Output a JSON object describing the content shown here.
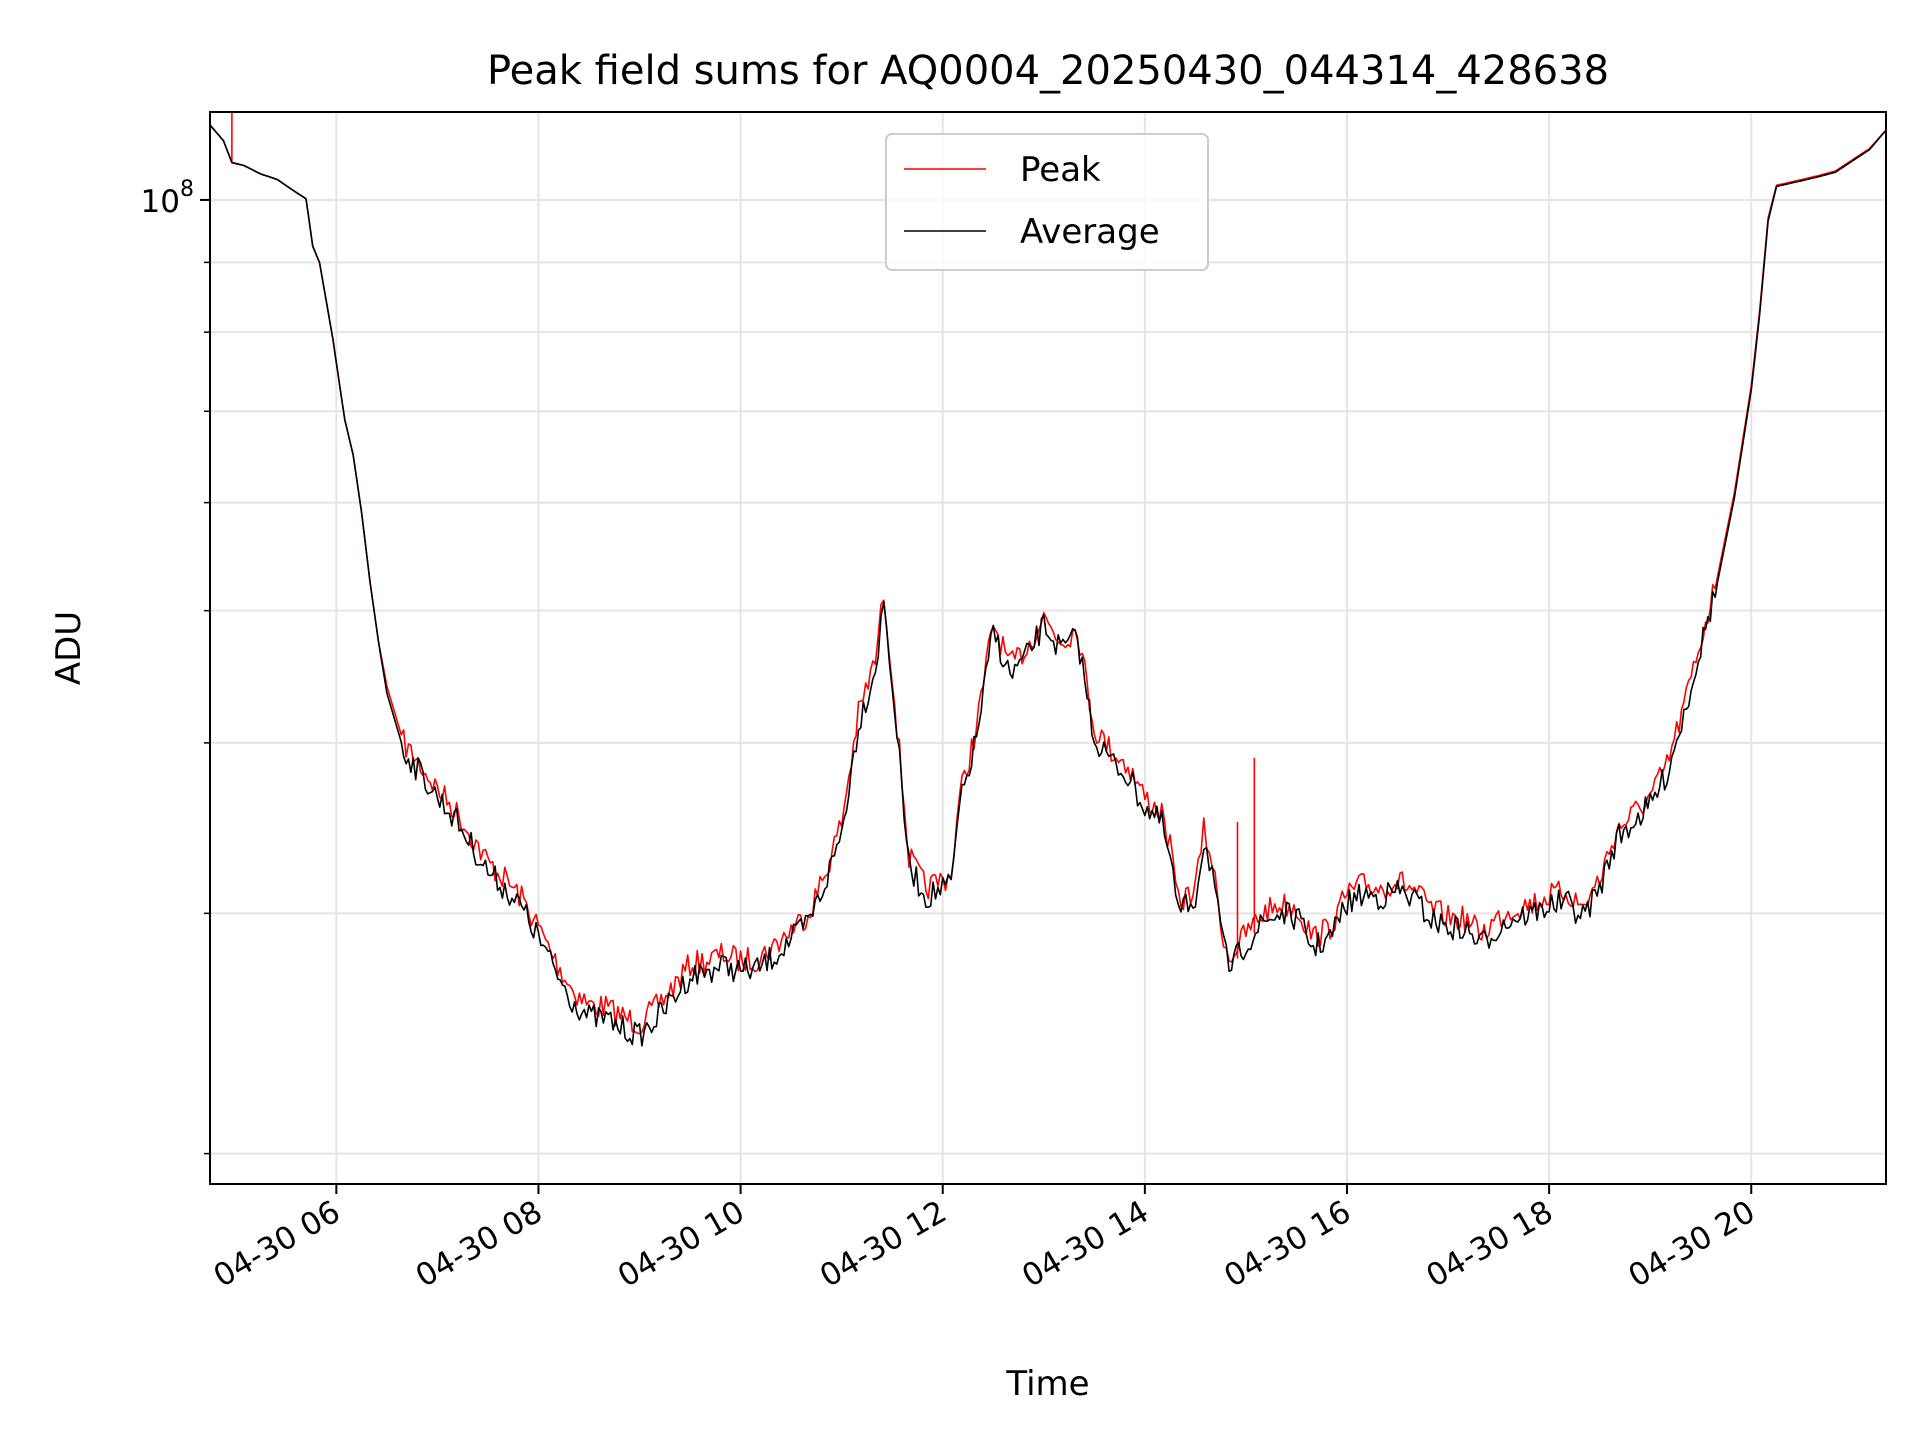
{
  "chart_data": {
    "type": "line",
    "title": "Peak field sums for AQ0004_20250430_044314_428638",
    "xlabel": "Time",
    "ylabel": "ADU",
    "x_type": "datetime",
    "x_tick_labels": [
      "04-30 06",
      "04-30 08",
      "04-30 10",
      "04-30 12",
      "04-30 14",
      "04-30 16",
      "04-30 18",
      "04-30 20"
    ],
    "x_tick_values": [
      "2025-04-30 06:00",
      "2025-04-30 08:00",
      "2025-04-30 10:00",
      "2025-04-30 12:00",
      "2025-04-30 14:00",
      "2025-04-30 16:00",
      "2025-04-30 18:00",
      "2025-04-30 20:00"
    ],
    "xlim": [
      "2025-04-30 04:45",
      "2025-04-30 21:20"
    ],
    "y_scale": "log",
    "ylim": [
      19000000,
      116000000
    ],
    "y_tick_labels": [
      {
        "base": "10",
        "exp": "8"
      }
    ],
    "y_tick_values": [
      100000000
    ],
    "y_minor_ticks": [
      20000000,
      30000000,
      40000000,
      50000000,
      60000000,
      70000000,
      80000000,
      90000000
    ],
    "grid": true,
    "legend": "upper center",
    "series": [
      {
        "name": "Peak",
        "color": "#ff0000",
        "points": [
          [
            "2025-04-30 04:45",
            113500000
          ],
          [
            "2025-04-30 04:53",
            110500000
          ],
          [
            "2025-04-30 04:58",
            106500000
          ],
          [
            "2025-04-30 05:05",
            106000000
          ],
          [
            "2025-04-30 05:15",
            104500000
          ],
          [
            "2025-04-30 05:25",
            103500000
          ],
          [
            "2025-04-30 05:35",
            101500000
          ],
          [
            "2025-04-30 05:42",
            100200000
          ],
          [
            "2025-04-30 05:46",
            92500000
          ],
          [
            "2025-04-30 05:50",
            90000000
          ],
          [
            "2025-04-30 05:58",
            79000000
          ],
          [
            "2025-04-30 06:05",
            69000000
          ],
          [
            "2025-04-30 06:10",
            65000000
          ],
          [
            "2025-04-30 06:15",
            59000000
          ],
          [
            "2025-04-30 06:20",
            52500000
          ],
          [
            "2025-04-30 06:25",
            47500000
          ],
          [
            "2025-04-30 06:30",
            44000000
          ],
          [
            "2025-04-30 06:40",
            40000000
          ],
          [
            "2025-04-30 06:50",
            38500000
          ],
          [
            "2025-04-30 07:00",
            37000000
          ],
          [
            "2025-04-30 07:10",
            35800000
          ],
          [
            "2025-04-30 07:20",
            34200000
          ],
          [
            "2025-04-30 07:30",
            32700000
          ],
          [
            "2025-04-30 07:40",
            31800000
          ],
          [
            "2025-04-30 07:50",
            30800000
          ],
          [
            "2025-04-30 08:00",
            29300000
          ],
          [
            "2025-04-30 08:10",
            27700000
          ],
          [
            "2025-04-30 08:20",
            26400000
          ],
          [
            "2025-04-30 08:30",
            25700000
          ],
          [
            "2025-04-30 08:40",
            25600000
          ],
          [
            "2025-04-30 08:50",
            25200000
          ],
          [
            "2025-04-30 09:00",
            24900000
          ],
          [
            "2025-04-30 09:10",
            25600000
          ],
          [
            "2025-04-30 09:20",
            26500000
          ],
          [
            "2025-04-30 09:30",
            27500000
          ],
          [
            "2025-04-30 09:40",
            27700000
          ],
          [
            "2025-04-30 09:50",
            28000000
          ],
          [
            "2025-04-30 10:00",
            27700000
          ],
          [
            "2025-04-30 10:10",
            27800000
          ],
          [
            "2025-04-30 10:20",
            28400000
          ],
          [
            "2025-04-30 10:30",
            29200000
          ],
          [
            "2025-04-30 10:40",
            30000000
          ],
          [
            "2025-04-30 10:50",
            32000000
          ],
          [
            "2025-04-30 11:00",
            35000000
          ],
          [
            "2025-04-30 11:10",
            42000000
          ],
          [
            "2025-04-30 11:20",
            46000000
          ],
          [
            "2025-04-30 11:25",
            51500000
          ],
          [
            "2025-04-30 11:30",
            45000000
          ],
          [
            "2025-04-30 11:40",
            33000000
          ],
          [
            "2025-04-30 11:50",
            31300000
          ],
          [
            "2025-04-30 12:00",
            31800000
          ],
          [
            "2025-04-30 12:05",
            32000000
          ],
          [
            "2025-04-30 12:10",
            36500000
          ],
          [
            "2025-04-30 12:20",
            41000000
          ],
          [
            "2025-04-30 12:30",
            49000000
          ],
          [
            "2025-04-30 12:40",
            45500000
          ],
          [
            "2025-04-30 12:50",
            47000000
          ],
          [
            "2025-04-30 13:00",
            49500000
          ],
          [
            "2025-04-30 13:10",
            47500000
          ],
          [
            "2025-04-30 13:20",
            48500000
          ],
          [
            "2025-04-30 13:30",
            41000000
          ],
          [
            "2025-04-30 13:40",
            39500000
          ],
          [
            "2025-04-30 13:50",
            38500000
          ],
          [
            "2025-04-30 14:00",
            36500000
          ],
          [
            "2025-04-30 14:10",
            35500000
          ],
          [
            "2025-04-30 14:15",
            33500000
          ],
          [
            "2025-04-30 14:20",
            30500000
          ],
          [
            "2025-04-30 14:30",
            31300000
          ],
          [
            "2025-04-30 14:35",
            34500000
          ],
          [
            "2025-04-30 14:40",
            32800000
          ],
          [
            "2025-04-30 14:45",
            29500000
          ],
          [
            "2025-04-30 14:50",
            27800000
          ],
          [
            "2025-04-30 15:00",
            29000000
          ],
          [
            "2025-04-30 15:10",
            30000000
          ],
          [
            "2025-04-30 15:20",
            30500000
          ],
          [
            "2025-04-30 15:30",
            30300000
          ],
          [
            "2025-04-30 15:40",
            28800000
          ],
          [
            "2025-04-30 15:50",
            29300000
          ],
          [
            "2025-04-30 16:00",
            31000000
          ],
          [
            "2025-04-30 16:10",
            31500000
          ],
          [
            "2025-04-30 16:20",
            31300000
          ],
          [
            "2025-04-30 16:30",
            31700000
          ],
          [
            "2025-04-30 16:40",
            31200000
          ],
          [
            "2025-04-30 16:50",
            30200000
          ],
          [
            "2025-04-30 17:00",
            29800000
          ],
          [
            "2025-04-30 17:10",
            29700000
          ],
          [
            "2025-04-30 17:20",
            29000000
          ],
          [
            "2025-04-30 17:30",
            29800000
          ],
          [
            "2025-04-30 17:40",
            30300000
          ],
          [
            "2025-04-30 17:50",
            30500000
          ],
          [
            "2025-04-30 18:00",
            30900000
          ],
          [
            "2025-04-30 18:10",
            31100000
          ],
          [
            "2025-04-30 18:20",
            30300000
          ],
          [
            "2025-04-30 18:30",
            31800000
          ],
          [
            "2025-04-30 18:40",
            34500000
          ],
          [
            "2025-04-30 18:50",
            35500000
          ],
          [
            "2025-04-30 19:00",
            36500000
          ],
          [
            "2025-04-30 19:10",
            38500000
          ],
          [
            "2025-04-30 19:20",
            42500000
          ],
          [
            "2025-04-30 19:30",
            47500000
          ],
          [
            "2025-04-30 19:40",
            53000000
          ],
          [
            "2025-04-30 19:50",
            61000000
          ],
          [
            "2025-04-30 20:00",
            73000000
          ],
          [
            "2025-04-30 20:05",
            83000000
          ],
          [
            "2025-04-30 20:10",
            97000000
          ],
          [
            "2025-04-30 20:15",
            102500000
          ],
          [
            "2025-04-30 20:30",
            103500000
          ],
          [
            "2025-04-30 20:40",
            104200000
          ],
          [
            "2025-04-30 20:50",
            105000000
          ],
          [
            "2025-04-30 21:00",
            107000000
          ],
          [
            "2025-04-30 21:10",
            109000000
          ],
          [
            "2025-04-30 21:20",
            112500000
          ]
        ],
        "spikes": [
          [
            "2025-04-30 04:58",
            116000000
          ],
          [
            "2025-04-30 14:55",
            35000000
          ],
          [
            "2025-04-30 15:05",
            39000000
          ]
        ]
      },
      {
        "name": "Average",
        "color": "#000000",
        "points": [
          [
            "2025-04-30 04:45",
            113500000
          ],
          [
            "2025-04-30 04:53",
            110500000
          ],
          [
            "2025-04-30 04:58",
            106500000
          ],
          [
            "2025-04-30 05:05",
            106000000
          ],
          [
            "2025-04-30 05:15",
            104500000
          ],
          [
            "2025-04-30 05:25",
            103500000
          ],
          [
            "2025-04-30 05:35",
            101500000
          ],
          [
            "2025-04-30 05:42",
            100200000
          ],
          [
            "2025-04-30 05:46",
            92500000
          ],
          [
            "2025-04-30 05:50",
            90000000
          ],
          [
            "2025-04-30 05:58",
            79000000
          ],
          [
            "2025-04-30 06:05",
            69000000
          ],
          [
            "2025-04-30 06:10",
            65000000
          ],
          [
            "2025-04-30 06:15",
            59000000
          ],
          [
            "2025-04-30 06:20",
            52500000
          ],
          [
            "2025-04-30 06:25",
            47500000
          ],
          [
            "2025-04-30 06:30",
            43500000
          ],
          [
            "2025-04-30 06:40",
            39500000
          ],
          [
            "2025-04-30 06:50",
            38000000
          ],
          [
            "2025-04-30 07:00",
            36500000
          ],
          [
            "2025-04-30 07:10",
            35300000
          ],
          [
            "2025-04-30 07:20",
            33700000
          ],
          [
            "2025-04-30 07:30",
            32200000
          ],
          [
            "2025-04-30 07:40",
            31300000
          ],
          [
            "2025-04-30 07:50",
            30300000
          ],
          [
            "2025-04-30 08:00",
            28800000
          ],
          [
            "2025-04-30 08:10",
            27200000
          ],
          [
            "2025-04-30 08:20",
            25900000
          ],
          [
            "2025-04-30 08:30",
            25200000
          ],
          [
            "2025-04-30 08:40",
            25100000
          ],
          [
            "2025-04-30 08:50",
            24700000
          ],
          [
            "2025-04-30 09:00",
            24400000
          ],
          [
            "2025-04-30 09:10",
            25100000
          ],
          [
            "2025-04-30 09:20",
            26000000
          ],
          [
            "2025-04-30 09:30",
            27000000
          ],
          [
            "2025-04-30 09:40",
            27200000
          ],
          [
            "2025-04-30 09:50",
            27500000
          ],
          [
            "2025-04-30 10:00",
            27200000
          ],
          [
            "2025-04-30 10:10",
            27300000
          ],
          [
            "2025-04-30 10:20",
            27900000
          ],
          [
            "2025-04-30 10:30",
            28700000
          ],
          [
            "2025-04-30 10:40",
            29500000
          ],
          [
            "2025-04-30 10:50",
            31500000
          ],
          [
            "2025-04-30 11:00",
            34400000
          ],
          [
            "2025-04-30 11:10",
            41300000
          ],
          [
            "2025-04-30 11:20",
            45300000
          ],
          [
            "2025-04-30 11:25",
            50700000
          ],
          [
            "2025-04-30 11:30",
            44300000
          ],
          [
            "2025-04-30 11:40",
            32500000
          ],
          [
            "2025-04-30 11:50",
            30800000
          ],
          [
            "2025-04-30 12:00",
            31300000
          ],
          [
            "2025-04-30 12:05",
            31500000
          ],
          [
            "2025-04-30 12:10",
            35900000
          ],
          [
            "2025-04-30 12:20",
            40300000
          ],
          [
            "2025-04-30 12:30",
            48300000
          ],
          [
            "2025-04-30 12:40",
            44800000
          ],
          [
            "2025-04-30 12:50",
            46300000
          ],
          [
            "2025-04-30 13:00",
            48800000
          ],
          [
            "2025-04-30 13:10",
            46800000
          ],
          [
            "2025-04-30 13:20",
            47800000
          ],
          [
            "2025-04-30 13:30",
            40300000
          ],
          [
            "2025-04-30 13:40",
            38800000
          ],
          [
            "2025-04-30 13:50",
            37800000
          ],
          [
            "2025-04-30 14:00",
            35900000
          ],
          [
            "2025-04-30 14:10",
            34900000
          ],
          [
            "2025-04-30 14:15",
            32900000
          ],
          [
            "2025-04-30 14:20",
            30000000
          ],
          [
            "2025-04-30 14:30",
            30800000
          ],
          [
            "2025-04-30 14:35",
            33900000
          ],
          [
            "2025-04-30 14:40",
            32300000
          ],
          [
            "2025-04-30 14:45",
            29000000
          ],
          [
            "2025-04-30 14:50",
            27300000
          ],
          [
            "2025-04-30 15:00",
            28500000
          ],
          [
            "2025-04-30 15:10",
            29500000
          ],
          [
            "2025-04-30 15:20",
            30000000
          ],
          [
            "2025-04-30 15:30",
            29800000
          ],
          [
            "2025-04-30 15:40",
            28300000
          ],
          [
            "2025-04-30 15:50",
            28800000
          ],
          [
            "2025-04-30 16:00",
            30500000
          ],
          [
            "2025-04-30 16:10",
            31000000
          ],
          [
            "2025-04-30 16:20",
            30800000
          ],
          [
            "2025-04-30 16:30",
            31200000
          ],
          [
            "2025-04-30 16:40",
            30700000
          ],
          [
            "2025-04-30 16:50",
            29700000
          ],
          [
            "2025-04-30 17:00",
            29300000
          ],
          [
            "2025-04-30 17:10",
            29200000
          ],
          [
            "2025-04-30 17:20",
            28500000
          ],
          [
            "2025-04-30 17:30",
            29300000
          ],
          [
            "2025-04-30 17:40",
            29800000
          ],
          [
            "2025-04-30 17:50",
            30000000
          ],
          [
            "2025-04-30 18:00",
            30400000
          ],
          [
            "2025-04-30 18:10",
            30600000
          ],
          [
            "2025-04-30 18:20",
            29800000
          ],
          [
            "2025-04-30 18:30",
            31300000
          ],
          [
            "2025-04-30 18:40",
            34000000
          ],
          [
            "2025-04-30 18:50",
            35000000
          ],
          [
            "2025-04-30 19:00",
            36000000
          ],
          [
            "2025-04-30 19:10",
            38000000
          ],
          [
            "2025-04-30 19:20",
            42000000
          ],
          [
            "2025-04-30 19:30",
            47000000
          ],
          [
            "2025-04-30 19:40",
            52500000
          ],
          [
            "2025-04-30 19:50",
            60500000
          ],
          [
            "2025-04-30 20:00",
            72500000
          ],
          [
            "2025-04-30 20:05",
            82500000
          ],
          [
            "2025-04-30 20:10",
            96500000
          ],
          [
            "2025-04-30 20:15",
            102300000
          ],
          [
            "2025-04-30 20:30",
            103300000
          ],
          [
            "2025-04-30 20:40",
            104000000
          ],
          [
            "2025-04-30 20:50",
            104800000
          ],
          [
            "2025-04-30 21:00",
            106800000
          ],
          [
            "2025-04-30 21:10",
            108800000
          ],
          [
            "2025-04-30 21:20",
            112500000
          ]
        ]
      }
    ]
  }
}
